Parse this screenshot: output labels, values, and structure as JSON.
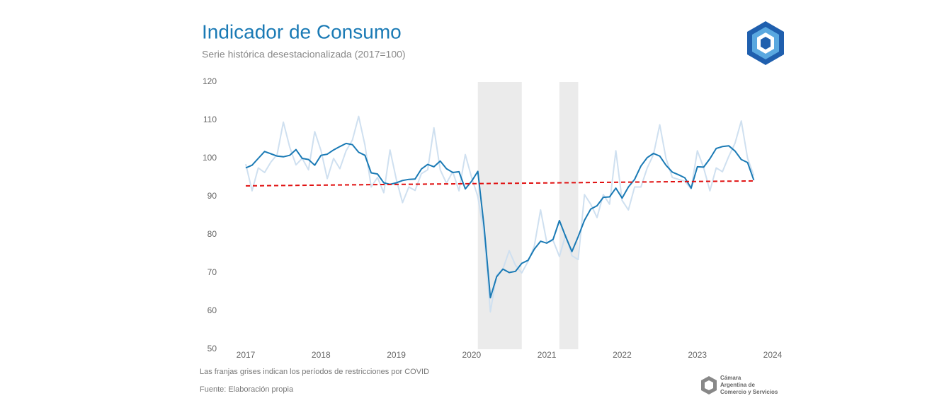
{
  "chart_data": {
    "type": "line",
    "title": "Indicador de Consumo",
    "subtitle": "Serie histórica desestacionalizada (2017=100)",
    "notes": [
      "Las franjas grises indican los períodos de restricciones por COVID",
      "Fuente: Elaboración propia"
    ],
    "org_lines": [
      "Cámara",
      "Argentina de",
      "Comercio y Servicios"
    ],
    "x": [
      "2017-01",
      "2017-02",
      "2017-03",
      "2017-04",
      "2017-05",
      "2017-06",
      "2017-07",
      "2017-08",
      "2017-09",
      "2017-10",
      "2017-11",
      "2017-12",
      "2018-01",
      "2018-02",
      "2018-03",
      "2018-04",
      "2018-05",
      "2018-06",
      "2018-07",
      "2018-08",
      "2018-09",
      "2018-10",
      "2018-11",
      "2018-12",
      "2019-01",
      "2019-02",
      "2019-03",
      "2019-04",
      "2019-05",
      "2019-06",
      "2019-07",
      "2019-08",
      "2019-09",
      "2019-10",
      "2019-11",
      "2019-12",
      "2020-01",
      "2020-02",
      "2020-03",
      "2020-04",
      "2020-05",
      "2020-06",
      "2020-07",
      "2020-08",
      "2020-09",
      "2020-10",
      "2020-11",
      "2020-12",
      "2021-01",
      "2021-02",
      "2021-03",
      "2021-04",
      "2021-05",
      "2021-06",
      "2021-07",
      "2021-08",
      "2021-09",
      "2021-10",
      "2021-11",
      "2021-12",
      "2022-01",
      "2022-02",
      "2022-03",
      "2022-04",
      "2022-05",
      "2022-06",
      "2022-07",
      "2022-08",
      "2022-09",
      "2022-10",
      "2022-11",
      "2022-12",
      "2023-01",
      "2023-02",
      "2023-03",
      "2023-04",
      "2023-05",
      "2023-06",
      "2023-07",
      "2023-08",
      "2023-09",
      "2023-10"
    ],
    "series": [
      {
        "color": "#cfe0f0",
        "values": [
          98.5,
          91.5,
          97.5,
          96.3,
          99,
          101,
          109.5,
          103,
          98.3,
          100,
          97,
          107,
          102,
          94.7,
          100,
          97.3,
          102,
          104.8,
          111,
          103.5,
          92.5,
          95,
          91,
          102.2,
          94.5,
          88.4,
          92.5,
          91.6,
          96,
          97,
          108,
          97,
          93.5,
          96.5,
          91.5,
          101,
          95,
          90,
          80,
          59.8,
          69.5,
          71,
          75.8,
          72,
          70,
          73,
          77,
          86.5,
          78,
          78.5,
          74.3,
          80,
          74.5,
          73.5,
          90.5,
          88,
          84.5,
          90.5,
          88,
          102,
          89,
          86.5,
          92.5,
          92.5,
          97.5,
          101,
          108.8,
          100,
          95,
          94.5,
          94,
          92,
          102,
          97.5,
          91.5,
          97.5,
          96.5,
          100.5,
          104,
          109.8,
          100,
          95.5
        ]
      },
      {
        "color": "#1a7ab5",
        "values": [
          97.5,
          98.2,
          100,
          101.8,
          101.2,
          100.6,
          100.4,
          100.8,
          102.3,
          100,
          99.7,
          98.2,
          100.8,
          101.1,
          102.2,
          103.1,
          103.9,
          103.6,
          101.6,
          100.8,
          96.2,
          95.9,
          93.6,
          93.2,
          93.6,
          94.2,
          94.5,
          94.6,
          97.2,
          98.4,
          97.8,
          99.3,
          97.3,
          96.3,
          96.5,
          92,
          94,
          96.6,
          82,
          63.5,
          69,
          71,
          70.1,
          70.4,
          72.5,
          73.3,
          76.2,
          78.3,
          77.8,
          78.8,
          83.7,
          79.5,
          75.6,
          79.5,
          83.8,
          86.7,
          87.6,
          89.8,
          89.9,
          92.2,
          89.6,
          92.5,
          94.5,
          98,
          100.2,
          101.3,
          100.6,
          98.2,
          96.4,
          95.7,
          94.9,
          92.2,
          97.8,
          97.7,
          99.9,
          102.6,
          103.1,
          103.3,
          101.9,
          99.7,
          98.9,
          94.3
        ]
      }
    ],
    "trend": {
      "x": [
        "2017-01",
        "2023-10"
      ],
      "values": [
        92.8,
        94.1
      ],
      "color": "#e01010"
    },
    "shaded_periods": [
      {
        "start": "2020-02",
        "end": "2020-09"
      },
      {
        "start": "2021-03",
        "end": "2021-06"
      }
    ],
    "band_color": "#ebebeb",
    "xlim": [
      2017,
      2024
    ],
    "xticks": [
      2017,
      2018,
      2019,
      2020,
      2021,
      2022,
      2023,
      2024
    ],
    "ylim": [
      50,
      120
    ],
    "yticks": [
      50,
      60,
      70,
      80,
      90,
      100,
      110,
      120
    ],
    "grid": false
  }
}
